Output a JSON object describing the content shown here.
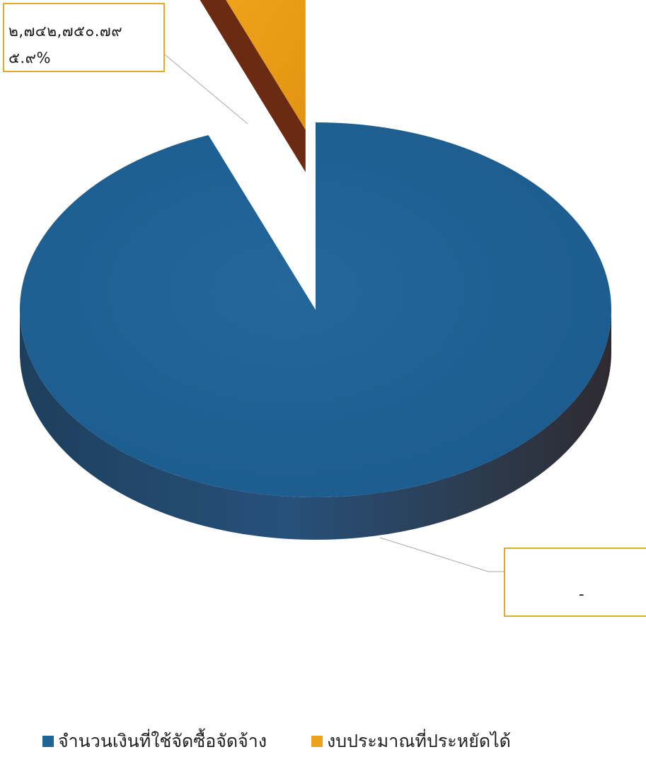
{
  "chart_data": {
    "type": "pie",
    "title": "",
    "categories": [
      "จำนวนเงินที่ใช้จัดซื้อจัดจ้าง",
      "งบประมาณที่ประหยัดได้"
    ],
    "series": [
      {
        "values": [
          94.1,
          5.9
        ],
        "colors": [
          "#1f6296",
          "#eda21c"
        ]
      }
    ],
    "data_labels": [
      {
        "category": "จำนวนเงินที่ใช้จัดซื้อจัดจ้าง",
        "value_text": "",
        "percent_text": "-"
      },
      {
        "category": "งบประมาณที่ประหยัดได้",
        "value_text": "๒,๗๔๒,๗๕๐.๗๙",
        "percent_text": "๕.๙%"
      }
    ],
    "style": "3d-exploded",
    "legend_position": "bottom"
  }
}
